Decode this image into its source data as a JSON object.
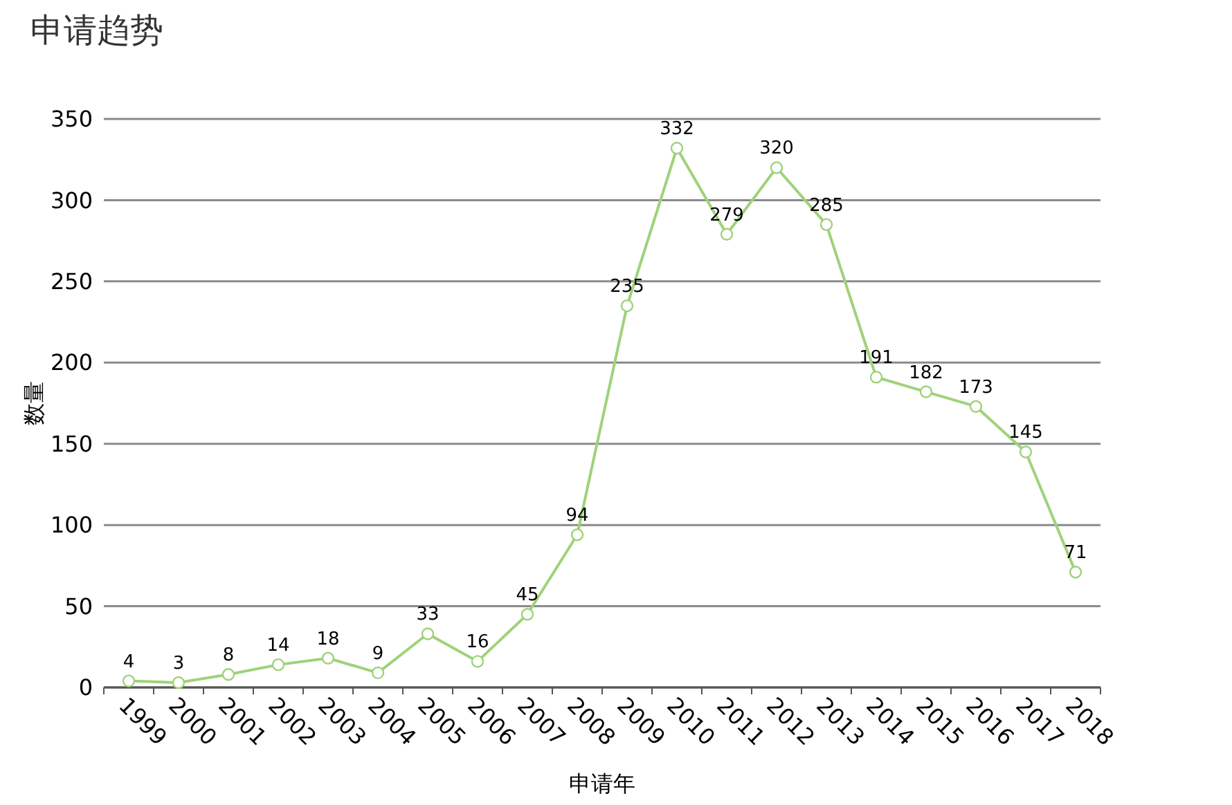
{
  "chart_data": {
    "type": "line",
    "title": "申请趋势",
    "xlabel": "申请年",
    "ylabel": "数量",
    "categories": [
      "1999",
      "2000",
      "2001",
      "2002",
      "2003",
      "2004",
      "2005",
      "2006",
      "2007",
      "2008",
      "2009",
      "2010",
      "2011",
      "2012",
      "2013",
      "2014",
      "2015",
      "2016",
      "2017",
      "2018"
    ],
    "series": [
      {
        "color": "#9fd27a",
        "values": [
          4,
          3,
          8,
          14,
          18,
          9,
          33,
          16,
          45,
          94,
          235,
          332,
          279,
          320,
          285,
          191,
          182,
          173,
          145,
          71
        ]
      }
    ],
    "ylim": [
      0,
      350
    ],
    "yticks": [
      0,
      50,
      100,
      150,
      200,
      250,
      300,
      350
    ],
    "grid": "y",
    "marker": "circle",
    "data_labels": true
  }
}
